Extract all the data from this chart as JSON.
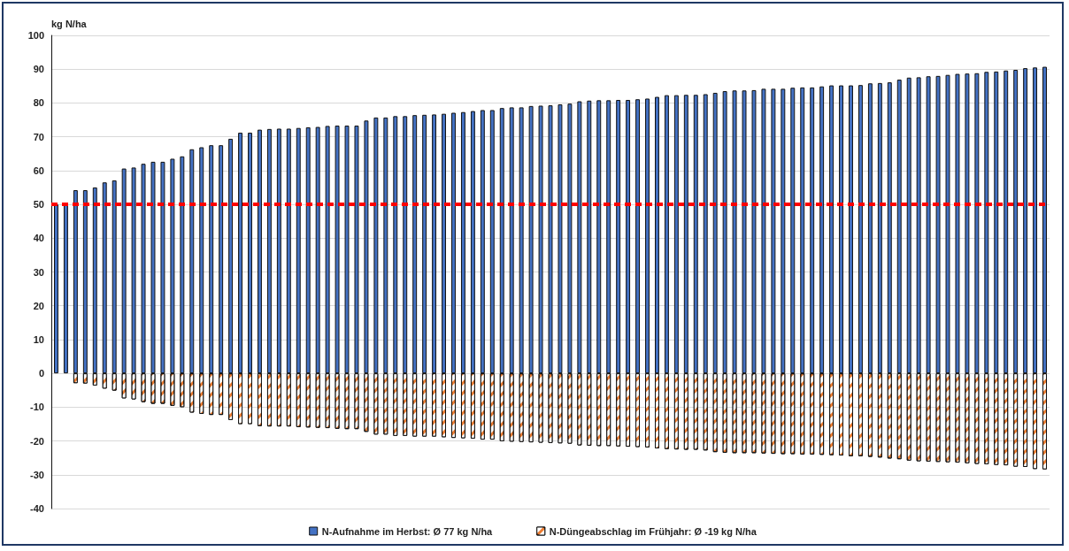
{
  "chart_data": {
    "type": "bar",
    "ylabel": "kg N/ha",
    "stacked": true,
    "grid": "y",
    "legend": "bottom",
    "categories": [
      null,
      null,
      null,
      null,
      null,
      null,
      null,
      null,
      null,
      null,
      null,
      null,
      null,
      null,
      null,
      null,
      null,
      null,
      null,
      null,
      null,
      null,
      null,
      null,
      null,
      null,
      null,
      null,
      null,
      null,
      null,
      null,
      null,
      null,
      null,
      null,
      null,
      null,
      null,
      null,
      null,
      null,
      null,
      null,
      null,
      null,
      null,
      null,
      null,
      null,
      null,
      null,
      null,
      null,
      null,
      null,
      null,
      null,
      null,
      null,
      null,
      null,
      null,
      null,
      null,
      null,
      null,
      null,
      null,
      null,
      null,
      null,
      null,
      null,
      null,
      null,
      null,
      null,
      null,
      null,
      null,
      null,
      null,
      null,
      null,
      null,
      null,
      null,
      null,
      null,
      null,
      null,
      null,
      null,
      null,
      null,
      null,
      null,
      null,
      null,
      null,
      null,
      null
    ],
    "series": [
      {
        "name": "N-Aufnahme im Herbst: Ø 77 kg N/ha",
        "color": "#4472c4",
        "values": [
          50,
          50,
          54.2,
          54.2,
          55.0,
          56.5,
          57.1,
          60.6,
          60.9,
          62.0,
          62.6,
          62.6,
          63.5,
          64.2,
          66.3,
          66.9,
          67.5,
          67.5,
          69.4,
          71.2,
          71.2,
          72.1,
          72.3,
          72.4,
          72.4,
          72.6,
          72.8,
          72.9,
          73.2,
          73.3,
          73.3,
          73.3,
          74.8,
          75.7,
          75.7,
          76.1,
          76.1,
          76.4,
          76.5,
          76.6,
          76.8,
          77.1,
          77.3,
          77.6,
          77.9,
          77.9,
          78.5,
          78.7,
          78.7,
          79.1,
          79.2,
          79.3,
          79.6,
          79.8,
          80.5,
          80.7,
          80.8,
          80.8,
          80.9,
          80.9,
          81.1,
          81.3,
          81.8,
          82.3,
          82.3,
          82.4,
          82.4,
          82.6,
          83.0,
          83.5,
          83.7,
          83.7,
          83.8,
          84.2,
          84.2,
          84.2,
          84.5,
          84.6,
          84.6,
          84.9,
          85.2,
          85.2,
          85.2,
          85.3,
          85.8,
          85.9,
          86.1,
          86.9,
          87.5,
          87.6,
          87.9,
          88.0,
          88.3,
          88.6,
          88.7,
          88.8,
          89.2,
          89.3,
          89.6,
          89.8,
          90.3,
          90.5,
          90.7
        ]
      },
      {
        "name": "N-Düngeabschlag im Frühjahr: Ø -19 kg N/ha",
        "color": "#ed7d31",
        "values": [
          0,
          0,
          -2.9,
          -3.0,
          -3.6,
          -4.5,
          -5.1,
          -7.4,
          -7.7,
          -8.5,
          -9.0,
          -9.0,
          -9.6,
          -10.0,
          -11.6,
          -12.0,
          -12.3,
          -12.3,
          -13.8,
          -15.0,
          -15.0,
          -15.6,
          -15.7,
          -15.7,
          -15.7,
          -15.9,
          -16.0,
          -16.1,
          -16.2,
          -16.4,
          -16.5,
          -16.5,
          -17.3,
          -18.1,
          -18.1,
          -18.5,
          -18.5,
          -18.7,
          -18.7,
          -18.7,
          -18.9,
          -19.1,
          -19.2,
          -19.3,
          -19.6,
          -19.6,
          -20.1,
          -20.2,
          -20.3,
          -20.4,
          -20.5,
          -20.6,
          -20.7,
          -20.8,
          -21.3,
          -21.4,
          -21.5,
          -21.5,
          -21.6,
          -21.7,
          -21.8,
          -21.9,
          -22.2,
          -22.4,
          -22.5,
          -22.6,
          -22.6,
          -22.8,
          -23.3,
          -23.5,
          -23.6,
          -23.6,
          -23.6,
          -23.7,
          -23.8,
          -23.9,
          -23.9,
          -24.0,
          -24.0,
          -24.1,
          -24.2,
          -24.3,
          -24.5,
          -24.5,
          -24.7,
          -24.9,
          -25.2,
          -25.4,
          -25.8,
          -26.0,
          -26.1,
          -26.2,
          -26.3,
          -26.4,
          -26.6,
          -26.8,
          -26.9,
          -27.1,
          -27.2,
          -27.6,
          -27.7,
          -28.3,
          -28.4
        ]
      }
    ],
    "ylim": [
      -40,
      100
    ],
    "yticks": [
      -40,
      -30,
      -20,
      -10,
      0,
      10,
      20,
      30,
      40,
      50,
      60,
      70,
      80,
      90,
      100
    ],
    "ref_lines": [
      {
        "axis": "y",
        "value": 50,
        "color": "#ff0000",
        "line_style": "dashed"
      }
    ]
  }
}
